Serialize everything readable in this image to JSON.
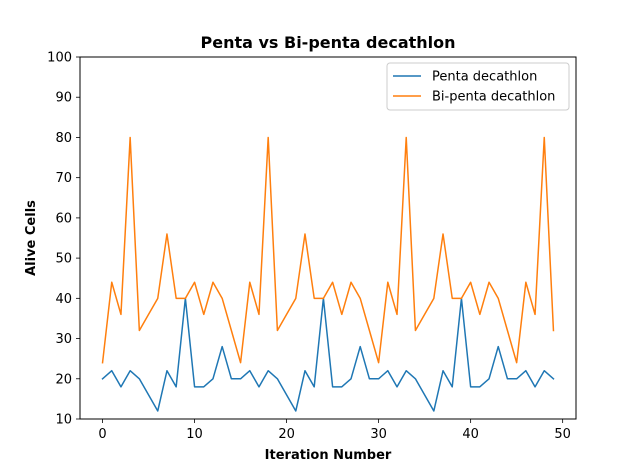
{
  "chart_data": {
    "type": "line",
    "title": "Penta vs Bi-penta decathlon",
    "xlabel": "Iteration Number",
    "ylabel": "Alive Cells",
    "xlim": [
      -2.45,
      51.45
    ],
    "ylim": [
      10,
      100
    ],
    "x_ticks": [
      0,
      10,
      20,
      30,
      40,
      50
    ],
    "y_ticks": [
      10,
      20,
      30,
      40,
      50,
      60,
      70,
      80,
      90,
      100
    ],
    "grid": false,
    "legend_position": "upper right",
    "x": [
      0,
      1,
      2,
      3,
      4,
      5,
      6,
      7,
      8,
      9,
      10,
      11,
      12,
      13,
      14,
      15,
      16,
      17,
      18,
      19,
      20,
      21,
      22,
      23,
      24,
      25,
      26,
      27,
      28,
      29,
      30,
      31,
      32,
      33,
      34,
      35,
      36,
      37,
      38,
      39,
      40,
      41,
      42,
      43,
      44,
      45,
      46,
      47,
      48,
      49
    ],
    "series": [
      {
        "name": "Penta decathlon",
        "color": "#1f77b4",
        "values": [
          20,
          22,
          18,
          22,
          20,
          16,
          12,
          22,
          18,
          40,
          18,
          18,
          20,
          28,
          20,
          20,
          22,
          18,
          22,
          20,
          16,
          12,
          22,
          18,
          40,
          18,
          18,
          20,
          28,
          20,
          20,
          22,
          18,
          22,
          20,
          16,
          12,
          22,
          18,
          40,
          18,
          18,
          20,
          28,
          20,
          20,
          22,
          18,
          22,
          20
        ]
      },
      {
        "name": "Bi-penta decathlon",
        "color": "#ff7f0e",
        "values": [
          24,
          44,
          36,
          80,
          32,
          36,
          40,
          56,
          40,
          40,
          44,
          36,
          44,
          40,
          32,
          24,
          44,
          36,
          80,
          32,
          36,
          40,
          56,
          40,
          40,
          44,
          36,
          44,
          40,
          32,
          24,
          44,
          36,
          80,
          32,
          36,
          40,
          56,
          40,
          40,
          44,
          36,
          44,
          40,
          32,
          24,
          44,
          36,
          80,
          32
        ]
      }
    ]
  }
}
